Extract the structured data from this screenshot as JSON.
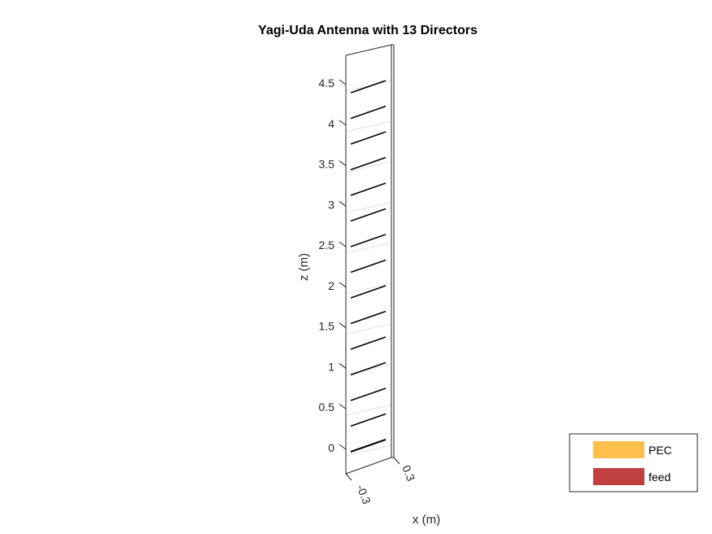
{
  "title": "Yagi-Uda Antenna with 13 Directors",
  "axes": {
    "zlabel": "z (m)",
    "xlabel": "x (m)",
    "z_ticks": [
      "0",
      "0.5",
      "1",
      "1.5",
      "2",
      "2.5",
      "3",
      "3.5",
      "4",
      "4.5"
    ],
    "x_ticks": [
      "-0.3",
      "0.3"
    ]
  },
  "legend": {
    "placement": "bottom-right",
    "entries": [
      {
        "label": "PEC",
        "color": "#FFBF4D"
      },
      {
        "label": "feed",
        "color": "#C04040"
      }
    ]
  },
  "antenna": {
    "director_count": 13,
    "element_color": "#000000",
    "box_color": "#262626",
    "grid_color": "#E0E0E0"
  }
}
